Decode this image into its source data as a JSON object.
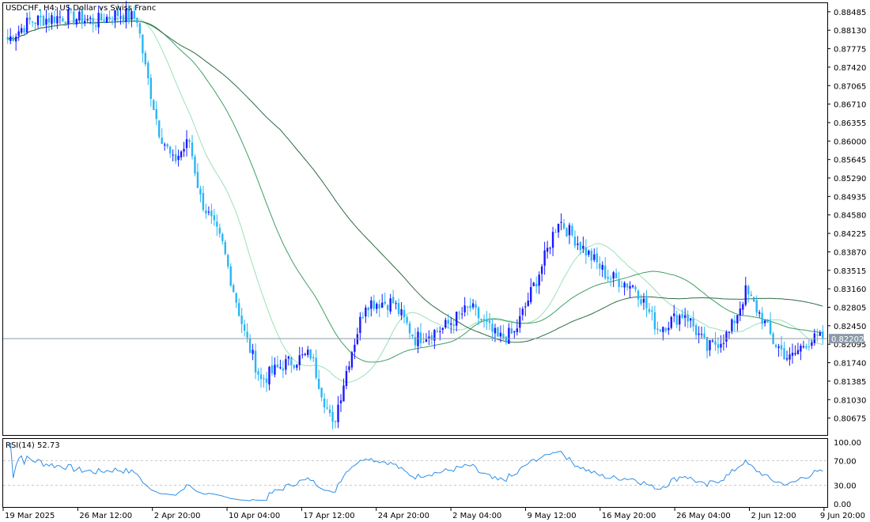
{
  "header": {
    "symbol_title": "USDCHF, H4:  US Dollar vs Swiss Franc"
  },
  "indicator": {
    "label": "RSI(14) 52.73"
  },
  "current_price_label": "0.82202",
  "colors": {
    "bull_candle": "#1a1aff",
    "bear_candle": "#29b6f6",
    "ma_fast": "#9be0b7",
    "ma_mid": "#3f9f63",
    "ma_slow": "#2e6b45",
    "rsi_line": "#2f8fe8",
    "price_line": "#8c9aa8",
    "price_tag_bg": "#8c9aa8",
    "grid": "#c8c8c8"
  },
  "chart_data": [
    {
      "type": "candlestick",
      "title": "USDCHF, H4:  US Dollar vs Swiss Franc",
      "y_ticks": [
        "0.88485",
        "0.88130",
        "0.87775",
        "0.87420",
        "0.87065",
        "0.86710",
        "0.86355",
        "0.86000",
        "0.85645",
        "0.85290",
        "0.84935",
        "0.84580",
        "0.84225",
        "0.83870",
        "0.83515",
        "0.83160",
        "0.82805",
        "0.82450",
        "0.82095",
        "0.81740",
        "0.81385",
        "0.81030",
        "0.80675"
      ],
      "ylim": [
        0.8035,
        0.8865
      ],
      "current_price": 0.82202,
      "x_ticks": [
        "19 Mar 2025",
        "26 Mar 12:00",
        "2 Apr 20:00",
        "10 Apr 04:00",
        "17 Apr 12:00",
        "24 Apr 20:00",
        "2 May 04:00",
        "9 May 12:00",
        "16 May 20:00",
        "26 May 04:00",
        "2 Jun 12:00",
        "9 Jun 20:00"
      ],
      "close_anchors": [
        [
          0,
          0.8795
        ],
        [
          8,
          0.883
        ],
        [
          20,
          0.884
        ],
        [
          32,
          0.883
        ],
        [
          40,
          0.8845
        ],
        [
          47,
          0.8835
        ],
        [
          50,
          0.874
        ],
        [
          55,
          0.862
        ],
        [
          60,
          0.856
        ],
        [
          66,
          0.86
        ],
        [
          70,
          0.849
        ],
        [
          78,
          0.84
        ],
        [
          86,
          0.823
        ],
        [
          92,
          0.814
        ],
        [
          100,
          0.817
        ],
        [
          110,
          0.819
        ],
        [
          118,
          0.805
        ],
        [
          124,
          0.818
        ],
        [
          130,
          0.829
        ],
        [
          140,
          0.829
        ],
        [
          148,
          0.822
        ],
        [
          158,
          0.824
        ],
        [
          168,
          0.828
        ],
        [
          178,
          0.822
        ],
        [
          184,
          0.823
        ],
        [
          194,
          0.836
        ],
        [
          200,
          0.845
        ],
        [
          208,
          0.84
        ],
        [
          218,
          0.834
        ],
        [
          228,
          0.832
        ],
        [
          236,
          0.824
        ],
        [
          246,
          0.827
        ],
        [
          254,
          0.82
        ],
        [
          262,
          0.823
        ],
        [
          268,
          0.831
        ],
        [
          274,
          0.826
        ],
        [
          278,
          0.8215
        ],
        [
          284,
          0.818
        ],
        [
          290,
          0.8215
        ],
        [
          296,
          0.822
        ]
      ],
      "n_candles": 297,
      "series": [
        {
          "name": "",
          "kind": "ma",
          "period": 21,
          "color_key": "ma_fast"
        },
        {
          "name": "",
          "kind": "ma",
          "period": 50,
          "color_key": "ma_mid"
        },
        {
          "name": "",
          "kind": "ma",
          "period": 100,
          "color_key": "ma_slow"
        }
      ]
    },
    {
      "type": "line",
      "title": "RSI(14) 52.73",
      "name": "RSI(14)",
      "last_value": 52.73,
      "y_ticks": [
        "100.00",
        "70.00",
        "30.00",
        "0.00"
      ],
      "levels": [
        70,
        30
      ],
      "ylim": [
        0,
        100
      ]
    }
  ]
}
